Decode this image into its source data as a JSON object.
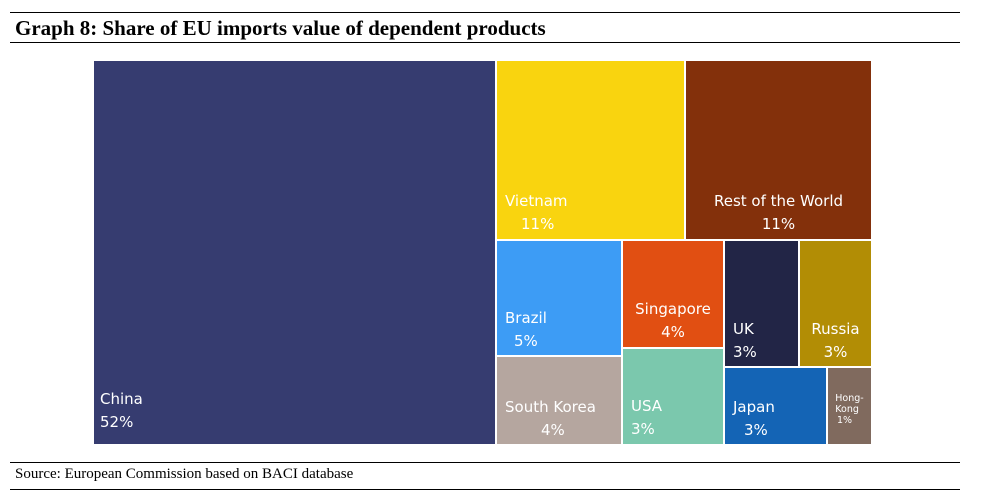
{
  "title": "Graph 8: Share of EU imports value of dependent products",
  "source": "Source: European Commission based on BACI database",
  "chart_data": {
    "type": "treemap",
    "items": [
      {
        "label": "China",
        "value_label": "52%",
        "value": 52,
        "color": "#363c70"
      },
      {
        "label": "Vietnam",
        "value_label": "11%",
        "value": 11,
        "color": "#f9d40f"
      },
      {
        "label": "Rest of the World",
        "value_label": "11%",
        "value": 11,
        "color": "#83300b"
      },
      {
        "label": "Brazil",
        "value_label": "5%",
        "value": 5,
        "color": "#3d9cf5"
      },
      {
        "label": "Singapore",
        "value_label": "4%",
        "value": 4,
        "color": "#e14f12"
      },
      {
        "label": "UK",
        "value_label": "3%",
        "value": 3,
        "color": "#222546"
      },
      {
        "label": "Russia",
        "value_label": "3%",
        "value": 3,
        "color": "#b28d05"
      },
      {
        "label": "South Korea",
        "value_label": "4%",
        "value": 4,
        "color": "#b5a69f"
      },
      {
        "label": "USA",
        "value_label": "3%",
        "value": 3,
        "color": "#7bc8ad"
      },
      {
        "label": "Japan",
        "value_label": "3%",
        "value": 3,
        "color": "#1464b5"
      },
      {
        "label": "Hong-\nKong",
        "value_label": "1%",
        "value": 1,
        "color": "#806a5e"
      }
    ]
  }
}
